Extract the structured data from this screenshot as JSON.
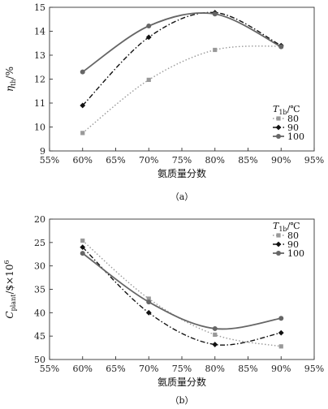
{
  "chart_data": [
    {
      "type": "line",
      "caption": "（a）",
      "xlabel": "氨质量分数",
      "ylabel": "η",
      "ylabel_sub": "th",
      "ylabel_unit": "/%",
      "x": [
        60,
        70,
        80,
        90
      ],
      "xticks": [
        "55%",
        "60%",
        "65%",
        "70%",
        "75%",
        "80%",
        "85%",
        "90%",
        "95%"
      ],
      "xlim": [
        55,
        95
      ],
      "ylim": [
        9,
        15
      ],
      "yticks": [
        "9",
        "10",
        "11",
        "12",
        "13",
        "14",
        "15"
      ],
      "y_inverted": false,
      "grid": false,
      "legend_title": "T",
      "legend_title_sub": "1b",
      "legend_title_unit": "/℃",
      "legend_position": "right",
      "series": [
        {
          "name": "80",
          "values": [
            9.75,
            11.97,
            13.22,
            13.38
          ],
          "style": "dotted",
          "marker": "square",
          "color": "#999999"
        },
        {
          "name": "90",
          "values": [
            10.9,
            13.75,
            14.78,
            13.4
          ],
          "style": "dashdot",
          "marker": "diamond",
          "color": "#111111"
        },
        {
          "name": "100",
          "values": [
            12.3,
            14.22,
            14.72,
            13.35
          ],
          "style": "solid",
          "marker": "circle",
          "color": "#666666"
        }
      ]
    },
    {
      "type": "line",
      "caption": "（b）",
      "xlabel": "氨质量分数",
      "ylabel": "C",
      "ylabel_sub": "plant",
      "ylabel_unit": "/$×10",
      "ylabel_sup": "6",
      "x": [
        60,
        70,
        80,
        90
      ],
      "xticks": [
        "55%",
        "60%",
        "65%",
        "70%",
        "75%",
        "80%",
        "85%",
        "90%",
        "95%"
      ],
      "xlim": [
        55,
        95
      ],
      "ylim": [
        20,
        50
      ],
      "yticks": [
        "20",
        "25",
        "30",
        "35",
        "40",
        "45",
        "50"
      ],
      "y_inverted": true,
      "grid": false,
      "legend_title": "T",
      "legend_title_sub": "1b",
      "legend_title_unit": "/℃",
      "legend_position": "top-right",
      "series": [
        {
          "name": "80",
          "values": [
            24.6,
            37.0,
            44.7,
            47.2
          ],
          "style": "dotted",
          "marker": "square",
          "color": "#999999"
        },
        {
          "name": "90",
          "values": [
            26.0,
            40.0,
            46.8,
            44.3
          ],
          "style": "dashdot",
          "marker": "diamond",
          "color": "#111111"
        },
        {
          "name": "100",
          "values": [
            27.3,
            37.7,
            43.4,
            41.2
          ],
          "style": "solid",
          "marker": "circle",
          "color": "#666666"
        }
      ]
    }
  ]
}
